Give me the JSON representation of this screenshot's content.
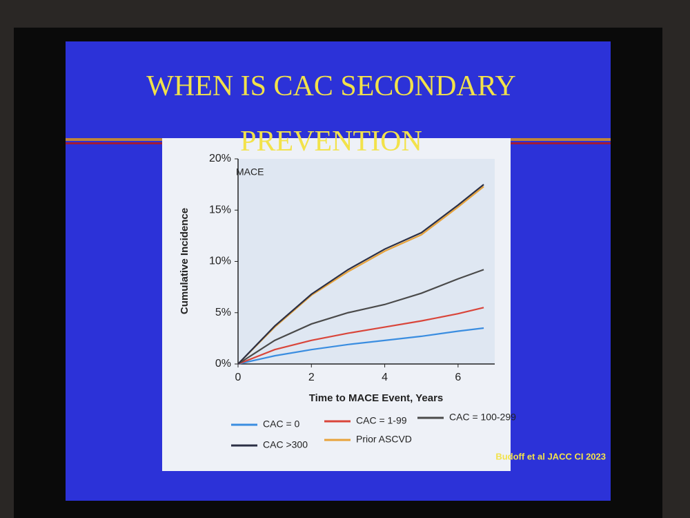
{
  "slide": {
    "title": "WHEN IS CAC SECONDARY PREVENTION",
    "credit": "Budoff et al JACC CI 2023"
  },
  "chart_data": {
    "type": "line",
    "annotation": "MACE",
    "x_label": "Time to MACE Event, Years",
    "y_label": "Cumulative Incidence",
    "x": [
      0,
      1,
      2,
      3,
      4,
      5,
      6,
      6.7
    ],
    "series": [
      {
        "name": "CAC = 0",
        "color": "#3a8de0",
        "values": [
          0,
          0.8,
          1.4,
          1.9,
          2.3,
          2.7,
          3.2,
          3.5
        ]
      },
      {
        "name": "CAC = 1-99",
        "color": "#d9453a",
        "values": [
          0,
          1.4,
          2.3,
          3.0,
          3.6,
          4.2,
          4.9,
          5.5
        ]
      },
      {
        "name": "CAC = 100-299",
        "color": "#4a4a4a",
        "values": [
          0,
          2.3,
          3.9,
          5.0,
          5.8,
          6.9,
          8.3,
          9.2
        ]
      },
      {
        "name": "Prior ASCVD",
        "color": "#e8a33a",
        "values": [
          0,
          3.6,
          6.7,
          9.0,
          11.0,
          12.6,
          15.3,
          17.3
        ]
      },
      {
        "name": "CAC >300",
        "color": "#2b2f45",
        "values": [
          0,
          3.7,
          6.8,
          9.2,
          11.2,
          12.8,
          15.5,
          17.5
        ]
      }
    ],
    "xlim": [
      0,
      7
    ],
    "ylim": [
      0,
      20
    ],
    "xticks": [
      0,
      2,
      4,
      6
    ],
    "yticks": [
      {
        "value": 0,
        "label": "0%"
      },
      {
        "value": 5,
        "label": "5%"
      },
      {
        "value": 10,
        "label": "10%"
      },
      {
        "value": 15,
        "label": "15%"
      },
      {
        "value": 20,
        "label": "20%"
      }
    ]
  }
}
